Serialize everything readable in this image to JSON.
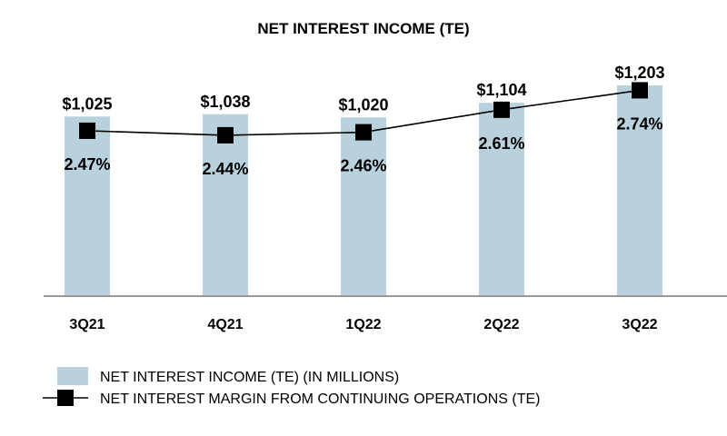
{
  "chart_data": {
    "type": "bar",
    "title": "NET INTEREST INCOME (TE)",
    "categories": [
      "3Q21",
      "4Q21",
      "1Q22",
      "2Q22",
      "3Q22"
    ],
    "series": [
      {
        "name": "NET INTEREST INCOME (TE) (IN MILLIONS)",
        "kind": "bar",
        "values": [
          1025,
          1038,
          1020,
          1104,
          1203
        ],
        "labels": [
          "$1,025",
          "$1,038",
          "$1,020",
          "$1,104",
          "$1,203"
        ],
        "color": "#b9d1dc"
      },
      {
        "name": "NET INTEREST MARGIN FROM CONTINUING OPERATIONS (TE)",
        "kind": "line",
        "values": [
          2.47,
          2.44,
          2.46,
          2.61,
          2.74
        ],
        "labels": [
          "2.47%",
          "2.44%",
          "2.46%",
          "2.61%",
          "2.74%"
        ],
        "color": "#000000"
      }
    ],
    "legend_position": "bottom-left",
    "grid": false,
    "ylim_bars": [
      0,
      1300
    ],
    "ylim_line": [
      1.3,
      3.1
    ]
  }
}
